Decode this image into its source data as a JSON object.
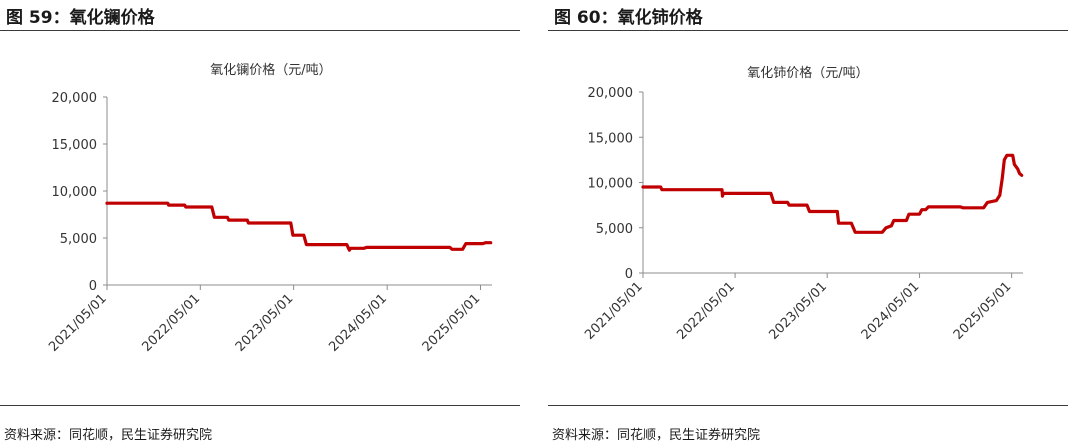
{
  "panels": [
    {
      "figure_title": "图 59：氧化镧价格",
      "source": "资料来源：同花顺，民生证券研究院"
    },
    {
      "figure_title": "图 60：氧化铈价格",
      "source": "资料来源：同花顺，民生证券研究院"
    }
  ],
  "chart_data": [
    {
      "type": "line",
      "title": "氧化镧价格（元/吨）",
      "xlabel": "",
      "ylabel": "",
      "x_type": "date",
      "xlim": [
        "2021-05-01",
        "2025-06-15"
      ],
      "ylim": [
        0,
        20000
      ],
      "y_ticks": [
        0,
        5000,
        10000,
        15000,
        20000
      ],
      "y_tick_labels": [
        "0",
        "5,000",
        "10,000",
        "15,000",
        "20,000"
      ],
      "x_ticks": [
        "2021-05-01",
        "2022-05-01",
        "2023-05-01",
        "2024-05-01",
        "2025-05-01"
      ],
      "x_tick_labels": [
        "2021/05/01",
        "2022/05/01",
        "2023/05/01",
        "2024/05/01",
        "2025/05/01"
      ],
      "grid": false,
      "line_color": "#C00000",
      "series": [
        {
          "points": [
            [
              "2021-05-01",
              8700
            ],
            [
              "2021-12-25",
              8700
            ],
            [
              "2021-12-28",
              8500
            ],
            [
              "2022-03-01",
              8500
            ],
            [
              "2022-03-05",
              8300
            ],
            [
              "2022-06-15",
              8300
            ],
            [
              "2022-06-25",
              7200
            ],
            [
              "2022-08-15",
              7200
            ],
            [
              "2022-08-20",
              6900
            ],
            [
              "2022-11-01",
              6900
            ],
            [
              "2022-11-05",
              6600
            ],
            [
              "2023-04-20",
              6600
            ],
            [
              "2023-04-28",
              5300
            ],
            [
              "2023-06-10",
              5300
            ],
            [
              "2023-06-20",
              4300
            ],
            [
              "2023-11-25",
              4300
            ],
            [
              "2023-12-05",
              3700
            ],
            [
              "2023-12-10",
              3900
            ],
            [
              "2024-02-01",
              3900
            ],
            [
              "2024-02-10",
              4000
            ],
            [
              "2025-01-01",
              4000
            ],
            [
              "2025-01-10",
              3800
            ],
            [
              "2025-02-20",
              3800
            ],
            [
              "2025-03-05",
              4400
            ],
            [
              "2025-05-10",
              4400
            ],
            [
              "2025-05-20",
              4500
            ],
            [
              "2025-06-10",
              4500
            ]
          ]
        }
      ]
    },
    {
      "type": "line",
      "title": "氧化铈价格（元/吨）",
      "xlabel": "",
      "ylabel": "",
      "x_type": "date",
      "xlim": [
        "2021-05-01",
        "2025-06-15"
      ],
      "ylim": [
        0,
        20000
      ],
      "y_ticks": [
        0,
        5000,
        10000,
        15000,
        20000
      ],
      "y_tick_labels": [
        "0",
        "5,000",
        "10,000",
        "15,000",
        "20,000"
      ],
      "x_ticks": [
        "2021-05-01",
        "2022-05-01",
        "2023-05-01",
        "2024-05-01",
        "2025-05-01"
      ],
      "x_tick_labels": [
        "2021/05/01",
        "2022/05/01",
        "2023/05/01",
        "2024/05/01",
        "2025/05/01"
      ],
      "grid": false,
      "line_color": "#C00000",
      "series": [
        {
          "points": [
            [
              "2021-05-01",
              9500
            ],
            [
              "2021-07-10",
              9500
            ],
            [
              "2021-07-15",
              9200
            ],
            [
              "2022-03-10",
              9200
            ],
            [
              "2022-03-12",
              8500
            ],
            [
              "2022-03-15",
              8800
            ],
            [
              "2022-09-20",
              8800
            ],
            [
              "2022-10-01",
              7800
            ],
            [
              "2022-11-25",
              7800
            ],
            [
              "2022-12-01",
              7500
            ],
            [
              "2023-02-10",
              7500
            ],
            [
              "2023-02-20",
              6800
            ],
            [
              "2023-06-10",
              6800
            ],
            [
              "2023-06-15",
              5500
            ],
            [
              "2023-08-05",
              5500
            ],
            [
              "2023-08-20",
              4500
            ],
            [
              "2023-12-05",
              4500
            ],
            [
              "2023-12-20",
              5000
            ],
            [
              "2024-01-10",
              5200
            ],
            [
              "2024-01-20",
              5800
            ],
            [
              "2024-03-10",
              5800
            ],
            [
              "2024-03-20",
              6500
            ],
            [
              "2024-05-01",
              6500
            ],
            [
              "2024-05-10",
              7000
            ],
            [
              "2024-05-25",
              7000
            ],
            [
              "2024-06-05",
              7300
            ],
            [
              "2024-10-10",
              7300
            ],
            [
              "2024-10-20",
              7200
            ],
            [
              "2025-01-10",
              7200
            ],
            [
              "2025-01-25",
              7800
            ],
            [
              "2025-03-01",
              8000
            ],
            [
              "2025-03-15",
              8600
            ],
            [
              "2025-03-25",
              10500
            ],
            [
              "2025-04-02",
              12500
            ],
            [
              "2025-04-12",
              13000
            ],
            [
              "2025-05-05",
              13000
            ],
            [
              "2025-05-12",
              12000
            ],
            [
              "2025-05-25",
              11500
            ],
            [
              "2025-06-01",
              11000
            ],
            [
              "2025-06-10",
              10800
            ]
          ]
        }
      ]
    }
  ]
}
